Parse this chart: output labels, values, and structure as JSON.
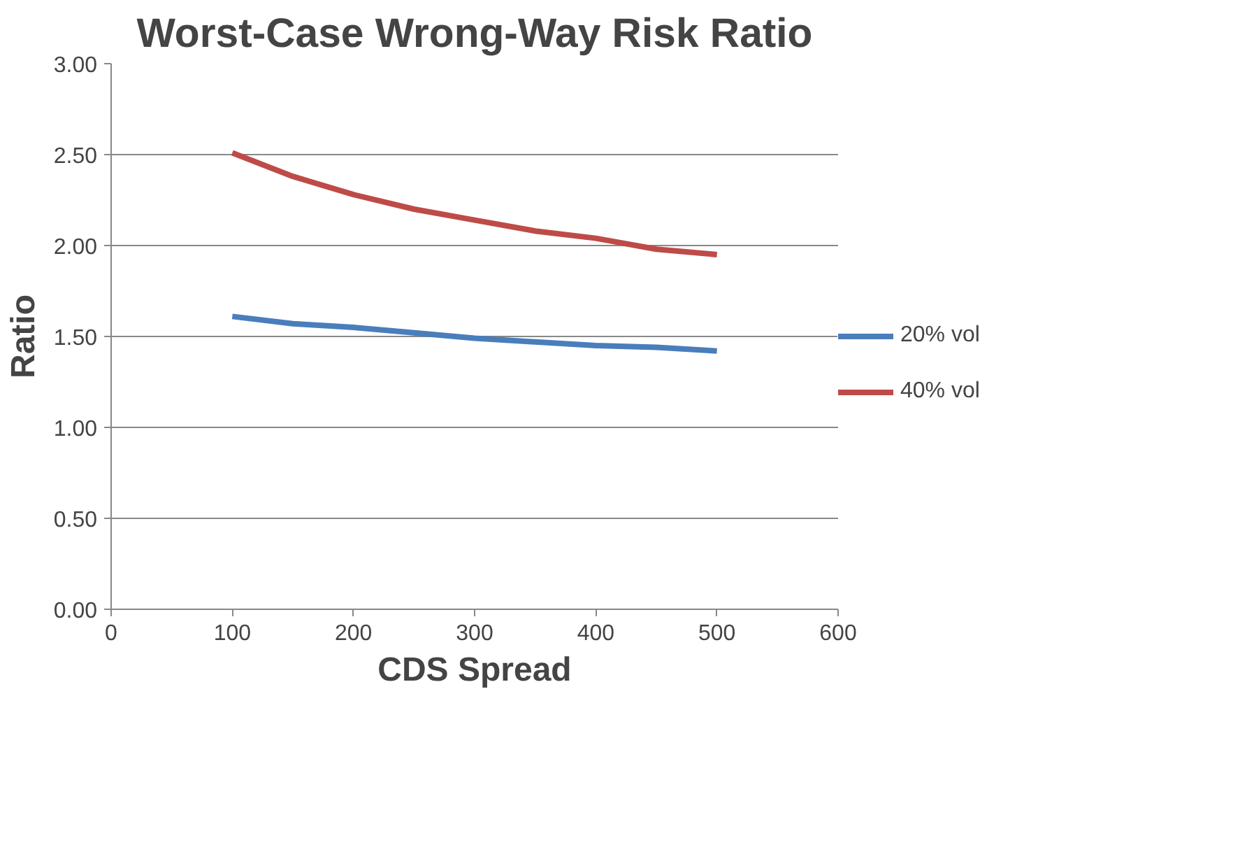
{
  "chart_data": {
    "type": "line",
    "title": "Worst-Case Wrong-Way Risk Ratio",
    "xlabel": "CDS Spread",
    "ylabel": "Ratio",
    "x": [
      100,
      150,
      200,
      250,
      300,
      350,
      400,
      450,
      500
    ],
    "series": [
      {
        "name": "20% vol",
        "color": "#4a7ebb",
        "values": [
          1.61,
          1.57,
          1.55,
          1.52,
          1.49,
          1.47,
          1.45,
          1.44,
          1.42
        ]
      },
      {
        "name": "40% vol",
        "color": "#be4b48",
        "values": [
          2.51,
          2.38,
          2.28,
          2.2,
          2.14,
          2.08,
          2.04,
          1.98,
          1.95
        ]
      }
    ],
    "xlim": [
      0,
      600
    ],
    "xticks": [
      0,
      100,
      200,
      300,
      400,
      500,
      600
    ],
    "ylim": [
      0,
      3
    ],
    "yticks": [
      {
        "value": 0,
        "label": "0.00"
      },
      {
        "value": 0.5,
        "label": "0.50"
      },
      {
        "value": 1,
        "label": "1.00"
      },
      {
        "value": 1.5,
        "label": "1.50"
      },
      {
        "value": 2,
        "label": "2.00"
      },
      {
        "value": 2.5,
        "label": "2.50"
      },
      {
        "value": 3,
        "label": "3.00"
      }
    ],
    "grid": "y",
    "legend": "right",
    "marker": "none",
    "line_style": "solid"
  }
}
